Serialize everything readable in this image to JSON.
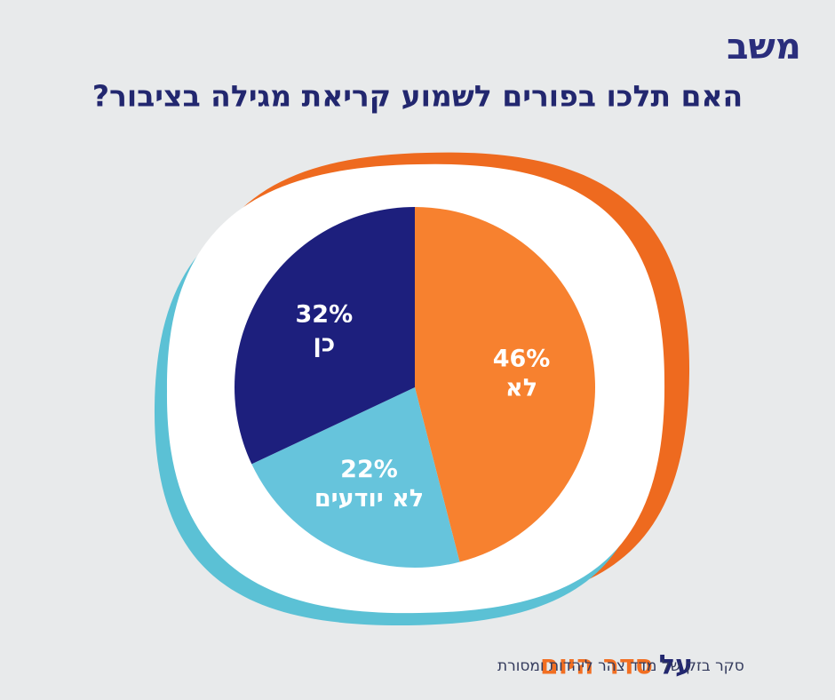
{
  "logo": "משב",
  "chart_data": {
    "type": "pie",
    "title": "האם תלכו בפורים לשמוע קריאת מגילה בציבור?",
    "categories": [
      "לא",
      "לא יודעים",
      "כן"
    ],
    "values": [
      46,
      22,
      32
    ],
    "value_labels": [
      "46%",
      "22%",
      "32%"
    ],
    "colors": [
      "#f7812f",
      "#66c4dc",
      "#1d1f7d"
    ]
  },
  "footer": {
    "brand_prefix": "על",
    "brand": "סדר היום",
    "source": "סקר בזק של מדד צהר ליהדות ומסורת"
  }
}
